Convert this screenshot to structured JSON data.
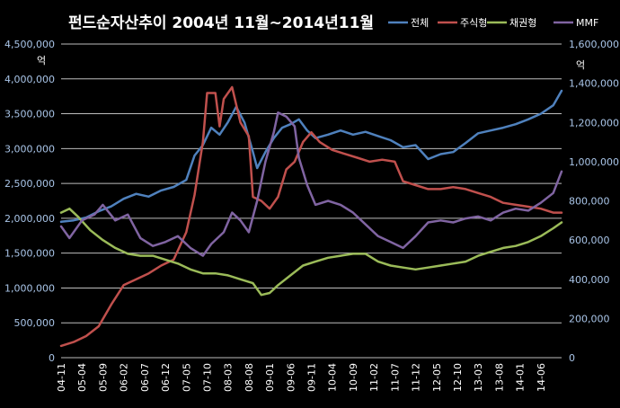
{
  "chart_data": {
    "type": "line",
    "title": "펀드순자산추이 2004년 11월~2014년11월",
    "y_unit_left": "억",
    "y_unit_right": "억",
    "ylim_left": [
      0,
      4500000
    ],
    "ylim_right": [
      0,
      1600000
    ],
    "yticks_left": [
      "4,500,000",
      "4,000,000",
      "3,500,000",
      "3,000,000",
      "2,500,000",
      "2,000,000",
      "1,500,000",
      "1,000,000",
      "500,000",
      "0"
    ],
    "yticks_right": [
      "1,600,000",
      "1,400,000",
      "1,200,000",
      "1,000,000",
      "800,000",
      "600,000",
      "400,000",
      "200,000",
      "0"
    ],
    "x_tick_labels": [
      "04-11",
      "05-04",
      "05-09",
      "06-02",
      "06-07",
      "06-12",
      "07-05",
      "07-10",
      "08-03",
      "08-08",
      "09-01",
      "09-06",
      "09-11",
      "10-04",
      "10-09",
      "11-02",
      "11-07",
      "11-12",
      "12-05",
      "12-10",
      "13-03",
      "13-08",
      "14-01",
      "14-06"
    ],
    "x_range": [
      "2004-11",
      "2014-11"
    ],
    "grid": "horizontal",
    "legend_position": "top-right",
    "series": [
      {
        "name": "전체",
        "axis": "left",
        "color": "#4f81bd",
        "points": [
          [
            "2004-11",
            1950000
          ],
          [
            "2005-02",
            1970000
          ],
          [
            "2005-05",
            2010000
          ],
          [
            "2005-08",
            2100000
          ],
          [
            "2005-11",
            2170000
          ],
          [
            "2006-02",
            2280000
          ],
          [
            "2006-05",
            2350000
          ],
          [
            "2006-08",
            2310000
          ],
          [
            "2006-11",
            2400000
          ],
          [
            "2007-02",
            2450000
          ],
          [
            "2007-05",
            2550000
          ],
          [
            "2007-07",
            2900000
          ],
          [
            "2007-09",
            3050000
          ],
          [
            "2007-11",
            3300000
          ],
          [
            "2008-01",
            3200000
          ],
          [
            "2008-03",
            3380000
          ],
          [
            "2008-05",
            3600000
          ],
          [
            "2008-07",
            3370000
          ],
          [
            "2008-09",
            2950000
          ],
          [
            "2008-10",
            2720000
          ],
          [
            "2008-12",
            2950000
          ],
          [
            "2009-02",
            3150000
          ],
          [
            "2009-04",
            3300000
          ],
          [
            "2009-06",
            3350000
          ],
          [
            "2009-08",
            3420000
          ],
          [
            "2009-10",
            3260000
          ],
          [
            "2009-12",
            3150000
          ],
          [
            "2010-03",
            3200000
          ],
          [
            "2010-06",
            3260000
          ],
          [
            "2010-09",
            3200000
          ],
          [
            "2010-12",
            3240000
          ],
          [
            "2011-03",
            3180000
          ],
          [
            "2011-06",
            3120000
          ],
          [
            "2011-09",
            3020000
          ],
          [
            "2011-12",
            3050000
          ],
          [
            "2012-03",
            2850000
          ],
          [
            "2012-06",
            2920000
          ],
          [
            "2012-09",
            2950000
          ],
          [
            "2012-12",
            3080000
          ],
          [
            "2013-03",
            3220000
          ],
          [
            "2013-06",
            3260000
          ],
          [
            "2013-09",
            3300000
          ],
          [
            "2013-12",
            3350000
          ],
          [
            "2014-03",
            3420000
          ],
          [
            "2014-06",
            3500000
          ],
          [
            "2014-09",
            3620000
          ],
          [
            "2014-11",
            3830000
          ]
        ]
      },
      {
        "name": "주식형",
        "axis": "right",
        "color": "#c0504d",
        "points": [
          [
            "2004-11",
            60000
          ],
          [
            "2005-02",
            80000
          ],
          [
            "2005-05",
            110000
          ],
          [
            "2005-08",
            160000
          ],
          [
            "2005-11",
            270000
          ],
          [
            "2006-02",
            370000
          ],
          [
            "2006-05",
            400000
          ],
          [
            "2006-08",
            430000
          ],
          [
            "2006-11",
            470000
          ],
          [
            "2007-02",
            500000
          ],
          [
            "2007-05",
            640000
          ],
          [
            "2007-07",
            830000
          ],
          [
            "2007-09",
            1100000
          ],
          [
            "2007-10",
            1350000
          ],
          [
            "2007-12",
            1350000
          ],
          [
            "2008-01",
            1180000
          ],
          [
            "2008-02",
            1320000
          ],
          [
            "2008-04",
            1380000
          ],
          [
            "2008-06",
            1200000
          ],
          [
            "2008-08",
            1130000
          ],
          [
            "2008-09",
            820000
          ],
          [
            "2008-11",
            800000
          ],
          [
            "2009-01",
            760000
          ],
          [
            "2009-03",
            820000
          ],
          [
            "2009-05",
            960000
          ],
          [
            "2009-07",
            1000000
          ],
          [
            "2009-09",
            1100000
          ],
          [
            "2009-11",
            1150000
          ],
          [
            "2010-01",
            1100000
          ],
          [
            "2010-04",
            1060000
          ],
          [
            "2010-07",
            1040000
          ],
          [
            "2010-10",
            1020000
          ],
          [
            "2011-01",
            1000000
          ],
          [
            "2011-04",
            1010000
          ],
          [
            "2011-07",
            1000000
          ],
          [
            "2011-09",
            900000
          ],
          [
            "2011-12",
            880000
          ],
          [
            "2012-03",
            860000
          ],
          [
            "2012-06",
            860000
          ],
          [
            "2012-09",
            870000
          ],
          [
            "2012-12",
            860000
          ],
          [
            "2013-03",
            840000
          ],
          [
            "2013-06",
            820000
          ],
          [
            "2013-09",
            790000
          ],
          [
            "2013-12",
            780000
          ],
          [
            "2014-03",
            770000
          ],
          [
            "2014-06",
            760000
          ],
          [
            "2014-09",
            740000
          ],
          [
            "2014-11",
            740000
          ]
        ]
      },
      {
        "name": "채권형",
        "axis": "right",
        "color": "#9bbb59",
        "points": [
          [
            "2004-11",
            740000
          ],
          [
            "2005-01",
            760000
          ],
          [
            "2005-03",
            720000
          ],
          [
            "2005-06",
            650000
          ],
          [
            "2005-09",
            600000
          ],
          [
            "2005-12",
            560000
          ],
          [
            "2006-03",
            530000
          ],
          [
            "2006-06",
            520000
          ],
          [
            "2006-09",
            520000
          ],
          [
            "2006-12",
            500000
          ],
          [
            "2007-03",
            480000
          ],
          [
            "2007-06",
            450000
          ],
          [
            "2007-09",
            430000
          ],
          [
            "2007-12",
            430000
          ],
          [
            "2008-03",
            420000
          ],
          [
            "2008-06",
            400000
          ],
          [
            "2008-09",
            380000
          ],
          [
            "2008-11",
            320000
          ],
          [
            "2009-01",
            330000
          ],
          [
            "2009-03",
            370000
          ],
          [
            "2009-06",
            420000
          ],
          [
            "2009-09",
            470000
          ],
          [
            "2009-12",
            490000
          ],
          [
            "2010-03",
            510000
          ],
          [
            "2010-06",
            520000
          ],
          [
            "2010-09",
            530000
          ],
          [
            "2010-12",
            530000
          ],
          [
            "2011-03",
            490000
          ],
          [
            "2011-06",
            470000
          ],
          [
            "2011-09",
            460000
          ],
          [
            "2011-12",
            450000
          ],
          [
            "2012-03",
            460000
          ],
          [
            "2012-06",
            470000
          ],
          [
            "2012-09",
            480000
          ],
          [
            "2012-12",
            490000
          ],
          [
            "2013-03",
            520000
          ],
          [
            "2013-06",
            540000
          ],
          [
            "2013-09",
            560000
          ],
          [
            "2013-12",
            570000
          ],
          [
            "2014-03",
            590000
          ],
          [
            "2014-06",
            620000
          ],
          [
            "2014-09",
            660000
          ],
          [
            "2014-11",
            690000
          ]
        ]
      },
      {
        "name": "MMF",
        "axis": "right",
        "color": "#8064a2",
        "points": [
          [
            "2004-11",
            670000
          ],
          [
            "2005-01",
            610000
          ],
          [
            "2005-04",
            700000
          ],
          [
            "2005-07",
            730000
          ],
          [
            "2005-09",
            780000
          ],
          [
            "2005-12",
            700000
          ],
          [
            "2006-03",
            730000
          ],
          [
            "2006-06",
            610000
          ],
          [
            "2006-09",
            570000
          ],
          [
            "2006-12",
            590000
          ],
          [
            "2007-03",
            620000
          ],
          [
            "2007-06",
            560000
          ],
          [
            "2007-09",
            520000
          ],
          [
            "2007-11",
            580000
          ],
          [
            "2008-02",
            640000
          ],
          [
            "2008-04",
            740000
          ],
          [
            "2008-06",
            700000
          ],
          [
            "2008-08",
            640000
          ],
          [
            "2008-10",
            800000
          ],
          [
            "2008-12",
            1000000
          ],
          [
            "2009-02",
            1150000
          ],
          [
            "2009-03",
            1250000
          ],
          [
            "2009-05",
            1230000
          ],
          [
            "2009-07",
            1180000
          ],
          [
            "2009-08",
            1020000
          ],
          [
            "2009-10",
            880000
          ],
          [
            "2009-12",
            780000
          ],
          [
            "2010-03",
            800000
          ],
          [
            "2010-06",
            780000
          ],
          [
            "2010-09",
            740000
          ],
          [
            "2010-12",
            680000
          ],
          [
            "2011-03",
            620000
          ],
          [
            "2011-06",
            590000
          ],
          [
            "2011-09",
            560000
          ],
          [
            "2011-12",
            620000
          ],
          [
            "2012-03",
            690000
          ],
          [
            "2012-06",
            700000
          ],
          [
            "2012-09",
            690000
          ],
          [
            "2012-12",
            710000
          ],
          [
            "2013-03",
            720000
          ],
          [
            "2013-06",
            700000
          ],
          [
            "2013-09",
            740000
          ],
          [
            "2013-12",
            760000
          ],
          [
            "2014-03",
            750000
          ],
          [
            "2014-06",
            790000
          ],
          [
            "2014-09",
            840000
          ],
          [
            "2014-11",
            950000
          ]
        ]
      }
    ]
  }
}
